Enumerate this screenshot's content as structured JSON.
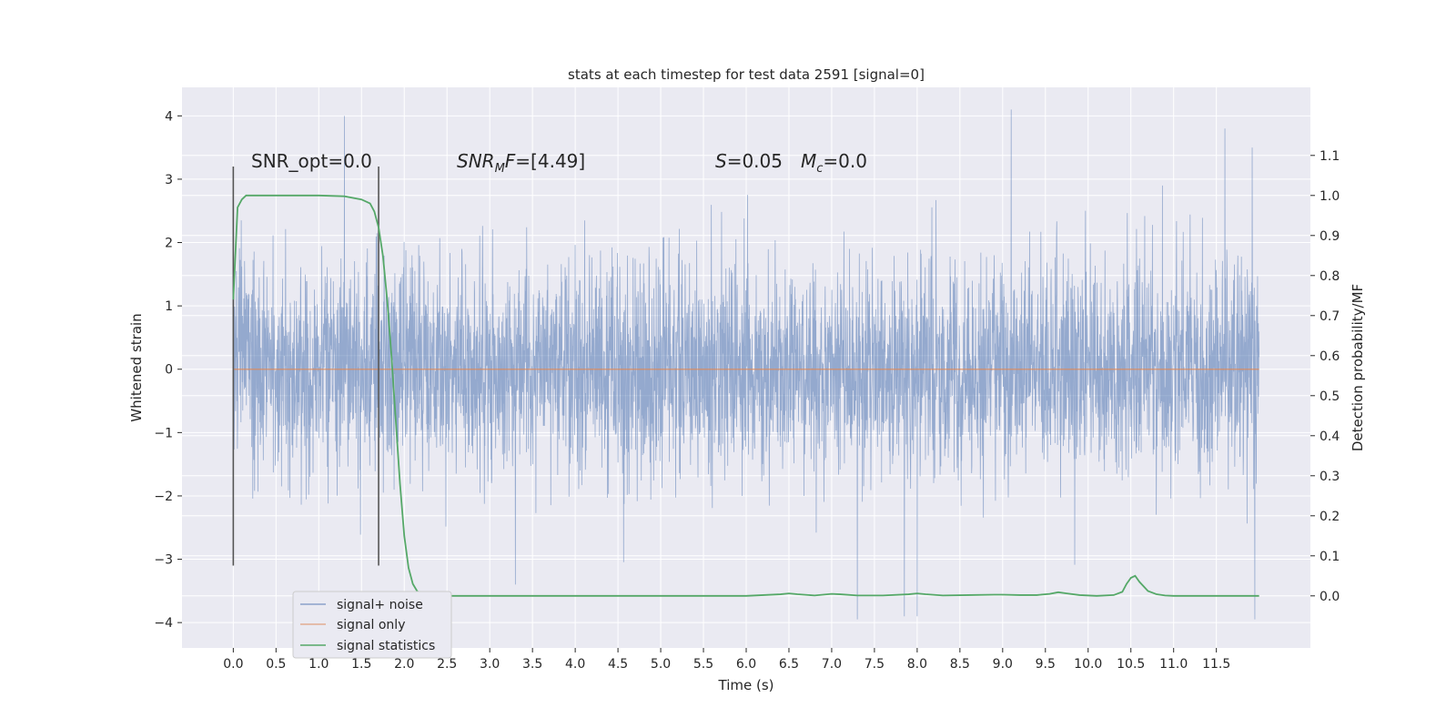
{
  "chart_data": {
    "type": "line",
    "title": "stats at each timestep for test data 2591 [signal=0]",
    "xlabel": "Time (s)",
    "ylabel": "Whitened strain",
    "y2label": "Detection probability/MF",
    "xlim": [
      -0.6,
      12.6
    ],
    "ylim": [
      -4.4,
      4.45
    ],
    "y2lim": [
      -0.13,
      1.27
    ],
    "x_ticks": [
      0.0,
      0.5,
      1.0,
      1.5,
      2.0,
      2.5,
      3.0,
      3.5,
      4.0,
      4.5,
      5.0,
      5.5,
      6.0,
      6.5,
      7.0,
      7.5,
      8.0,
      8.5,
      9.0,
      9.5,
      10.0,
      10.5,
      11.0,
      11.5
    ],
    "x_tick_labels": [
      "0.0",
      "0.5",
      "1.0",
      "1.5",
      "2.0",
      "2.5",
      "3.0",
      "3.5",
      "4.0",
      "4.5",
      "5.0",
      "5.5",
      "6.0",
      "6.5",
      "7.0",
      "7.5",
      "8.0",
      "8.5",
      "9.0",
      "9.5",
      "10.0",
      "10.5",
      "11.0",
      "11.5"
    ],
    "y_ticks": [
      -4,
      -3,
      -2,
      -1,
      0,
      1,
      2,
      3,
      4
    ],
    "y_tick_labels": [
      "−4",
      "−3",
      "−2",
      "−1",
      "0",
      "1",
      "2",
      "3",
      "4"
    ],
    "y2_ticks": [
      0.0,
      0.1,
      0.2,
      0.3,
      0.4,
      0.5,
      0.6,
      0.7,
      0.8,
      0.9,
      1.0,
      1.1
    ],
    "y2_tick_labels": [
      "0.0",
      "0.1",
      "0.2",
      "0.3",
      "0.4",
      "0.5",
      "0.6",
      "0.7",
      "0.8",
      "0.9",
      "1.0",
      "1.1"
    ],
    "grid": true,
    "legend_position": "lower-left",
    "series": [
      {
        "name": "signal+ noise",
        "axis": "left",
        "color": "#4c72b0",
        "t_range": [
          0.0,
          12.0
        ],
        "noise_std": 0.85,
        "extreme_points": [
          {
            "x": 1.3,
            "y": 4.0
          },
          {
            "x": 9.1,
            "y": 4.1
          },
          {
            "x": 11.6,
            "y": 3.8
          },
          {
            "x": 3.3,
            "y": -3.4
          },
          {
            "x": 7.3,
            "y": -3.95
          },
          {
            "x": 7.85,
            "y": -3.9
          },
          {
            "x": 8.0,
            "y": -3.9
          },
          {
            "x": 11.95,
            "y": -3.95
          }
        ]
      },
      {
        "name": "signal only",
        "axis": "left",
        "color": "#dd8452",
        "x": [
          0.0,
          12.0
        ],
        "y": [
          0.0,
          0.0
        ]
      },
      {
        "name": "signal statistics",
        "axis": "right",
        "color": "#55a868",
        "x": [
          0.0,
          0.05,
          0.1,
          0.15,
          0.2,
          0.3,
          0.5,
          1.0,
          1.3,
          1.5,
          1.6,
          1.65,
          1.7,
          1.75,
          1.8,
          1.85,
          1.9,
          1.95,
          2.0,
          2.05,
          2.1,
          2.15,
          2.2,
          2.3,
          2.5,
          3.0,
          4.0,
          5.0,
          6.0,
          6.4,
          6.5,
          6.6,
          6.8,
          7.0,
          7.1,
          7.3,
          7.6,
          7.9,
          8.0,
          8.1,
          8.3,
          8.6,
          8.9,
          9.0,
          9.2,
          9.4,
          9.55,
          9.65,
          9.75,
          9.9,
          10.1,
          10.3,
          10.4,
          10.45,
          10.5,
          10.55,
          10.6,
          10.7,
          10.8,
          10.9,
          11.0,
          11.5,
          12.0
        ],
        "y": [
          0.74,
          0.97,
          0.99,
          1.0,
          1.0,
          1.0,
          1.0,
          1.0,
          0.998,
          0.99,
          0.98,
          0.96,
          0.92,
          0.85,
          0.74,
          0.6,
          0.44,
          0.28,
          0.15,
          0.07,
          0.03,
          0.012,
          0.005,
          0.001,
          0.0,
          0.0,
          0.0,
          0.0,
          0.0,
          0.004,
          0.006,
          0.004,
          0.001,
          0.005,
          0.004,
          0.001,
          0.001,
          0.004,
          0.006,
          0.004,
          0.001,
          0.002,
          0.003,
          0.003,
          0.002,
          0.002,
          0.005,
          0.009,
          0.006,
          0.002,
          0.0,
          0.002,
          0.01,
          0.03,
          0.045,
          0.05,
          0.035,
          0.012,
          0.004,
          0.001,
          0.0,
          0.0,
          0.0
        ]
      }
    ],
    "vlines": [
      0.0,
      1.7
    ],
    "vlines_color": "#555555",
    "annotations": {
      "snr_opt": "SNR_opt=0.0",
      "snr_mf_main": "SNR",
      "snr_mf_sub": "M",
      "snr_mf_main2": "F",
      "snr_mf_value": "=[4.49]",
      "s_symbol": "S",
      "s_value": "=0.05",
      "mc_symbol": "M",
      "mc_sub": "c",
      "mc_value": "=0.0"
    },
    "legend": {
      "entries": [
        "signal+ noise",
        "signal only",
        "signal statistics"
      ],
      "colors": [
        "#4c72b0",
        "#dd8452",
        "#55a868"
      ]
    }
  }
}
